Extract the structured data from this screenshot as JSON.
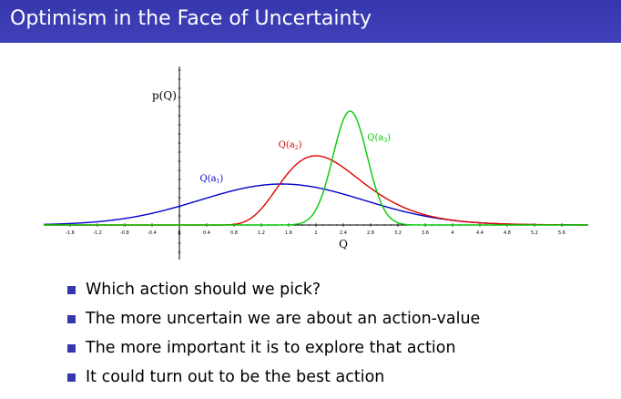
{
  "title": "Optimism in the Face of Uncertainty",
  "bullets": [
    "Which action should we pick?",
    "The more uncertain we are about an action-value",
    "The more important it is to explore that action",
    "It could turn out to be the best action"
  ],
  "colors": {
    "title_bar": "#3636ad",
    "bullet": "#3636ad"
  },
  "chart_data": {
    "type": "line",
    "xlabel": "Q",
    "ylabel": "p(Q)",
    "xlim": [
      -2,
      6
    ],
    "ylim": [
      0,
      1.3
    ],
    "x_ticks": [
      "-1.6",
      "-1.2",
      "-0.8",
      "-0.4",
      "0",
      "0.4",
      "0.8",
      "1.2",
      "1.6",
      "2",
      "2.4",
      "2.8",
      "3.2",
      "3.6",
      "4",
      "4.4",
      "4.8",
      "5.2",
      "5.6"
    ],
    "grid": false,
    "series": [
      {
        "name": "Q(a₁)",
        "label_main": "Q(a",
        "label_sub": "1",
        "label_close": ")",
        "color": "#0000cc",
        "type": "normal",
        "mean": 1.5,
        "sd": 1.2,
        "peak": 0.45
      },
      {
        "name": "Q(a₂)",
        "label_main": "Q(a",
        "label_sub": "2",
        "label_close": ")",
        "color": "#dd0000",
        "type": "lognormal",
        "shift": 0,
        "mode": 2,
        "sigma": 0.3,
        "peak": 0.76
      },
      {
        "name": "Q(a₃)",
        "label_main": "Q(a",
        "label_sub": "3",
        "label_close": ")",
        "color": "#00cc00",
        "type": "normal",
        "mean": 2.5,
        "sd": 0.25,
        "peak": 1.25
      }
    ]
  }
}
